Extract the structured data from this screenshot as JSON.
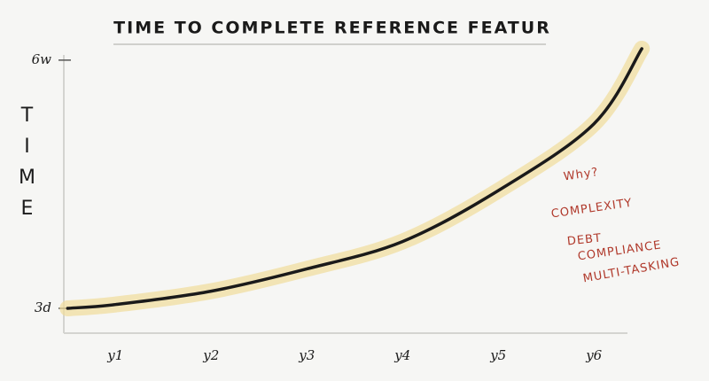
{
  "chart_data": {
    "type": "line",
    "title": "TIME TO COMPLETE REFERENCE FEATUR",
    "y_label": "TIME",
    "x": [
      0.5,
      1,
      2,
      3,
      4,
      5,
      6,
      6.5
    ],
    "series": [
      {
        "name": "time",
        "color": "#1a1a1a",
        "band_color": "#f1dd9a",
        "values": [
          3,
          3.6,
          5.7,
          9.2,
          13.5,
          21.5,
          32,
          43.8
        ]
      }
    ],
    "xlim": [
      0.46,
      6.35
    ],
    "xticks": [
      {
        "value": 1,
        "label": "y1"
      },
      {
        "value": 2,
        "label": "y2"
      },
      {
        "value": 3,
        "label": "y3"
      },
      {
        "value": 4,
        "label": "y4"
      },
      {
        "value": 5,
        "label": "y5"
      },
      {
        "value": 6,
        "label": "y6"
      }
    ],
    "ylim": [
      -0.9,
      42.4
    ],
    "yticks": [
      {
        "value": 3,
        "label": "3d"
      },
      {
        "value": 42,
        "label": "6w"
      }
    ],
    "annotations": [
      "Why?",
      "COMPLEXITY",
      "DEBT",
      "COMPLIANCE",
      "MULTI-TASKING"
    ]
  }
}
